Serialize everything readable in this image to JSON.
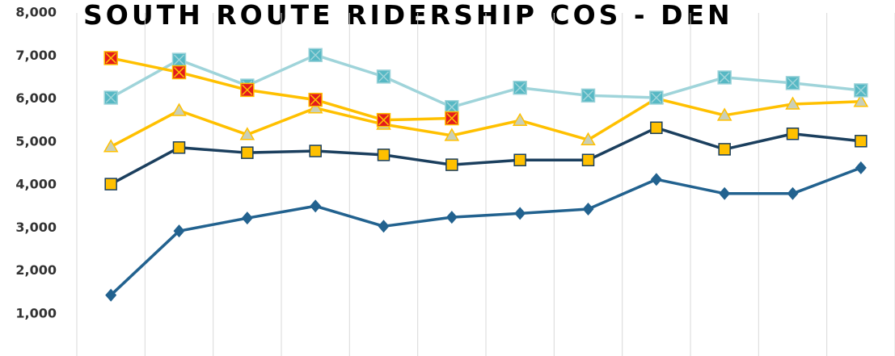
{
  "chart_data": {
    "type": "line",
    "title": "SOUTH ROUTE RIDERSHIP COS - DEN",
    "categories": [
      null,
      null,
      null,
      null,
      null,
      null,
      null,
      null,
      null,
      null,
      null,
      null
    ],
    "ylim": [
      0,
      8000
    ],
    "yticks": [
      {
        "value": 1000,
        "label": "1,000"
      },
      {
        "value": 2000,
        "label": "2,000"
      },
      {
        "value": 3000,
        "label": "3,000"
      },
      {
        "value": 4000,
        "label": "4,000"
      },
      {
        "value": 5000,
        "label": "5,000"
      },
      {
        "value": 6000,
        "label": "6,000"
      },
      {
        "value": 7000,
        "label": "7,000"
      },
      {
        "value": 8000,
        "label": "8,000"
      }
    ],
    "grid": true,
    "series": [
      {
        "color": "#22628f",
        "marker": "diamond",
        "marker_color": "#22628f",
        "values": [
          1440,
          2930,
          3230,
          3510,
          3040,
          3250,
          3340,
          3440,
          4130,
          3800,
          3800,
          4400
        ]
      },
      {
        "color": "#1b3f5e",
        "marker": "square",
        "marker_color": "#ffc000",
        "values": [
          4020,
          4870,
          4750,
          4790,
          4700,
          4470,
          4580,
          4580,
          5330,
          4830,
          5190,
          5020
        ]
      },
      {
        "color": "#ffc000",
        "marker": "triangle",
        "marker_color": "#c9cfb8",
        "values": [
          4890,
          5730,
          5170,
          5790,
          5410,
          5150,
          5500,
          5050,
          6010,
          5620,
          5880,
          5940
        ]
      },
      {
        "color": "#9fd4da",
        "marker": "xsquare",
        "marker_color": "#56b8c4",
        "values": [
          6030,
          6910,
          6310,
          7020,
          6520,
          5810,
          6260,
          6080,
          6030,
          6500,
          6370,
          6200
        ]
      },
      {
        "color": "#ffc000",
        "marker": "xsquare",
        "marker_color": "#e31a1c",
        "values": [
          6950,
          6620,
          6210,
          5980,
          5510,
          5550,
          null,
          null,
          null,
          null,
          null,
          null
        ]
      }
    ]
  }
}
